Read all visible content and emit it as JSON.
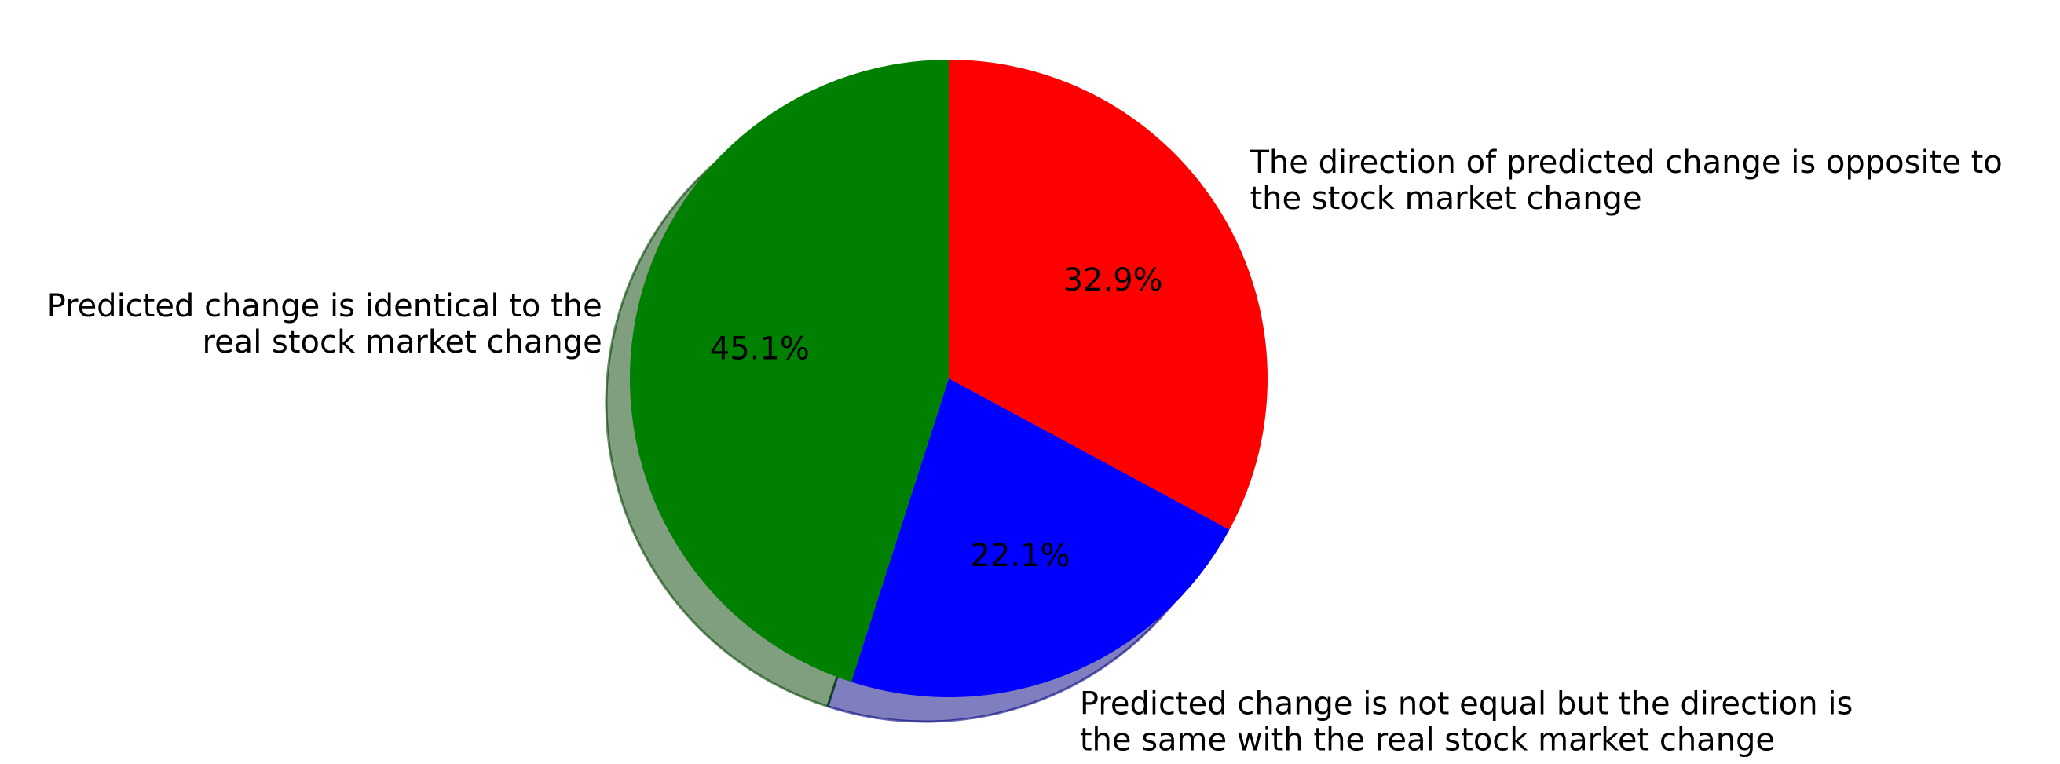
{
  "chart_data": {
    "type": "pie",
    "title": "",
    "shadow": true,
    "start_angle_deg": 90,
    "direction": "clockwise",
    "slices": [
      {
        "key": "opposite",
        "value": 32.9,
        "pct_label": "32.9%",
        "color": "#ff0000",
        "label_lines": [
          "The direction of predicted change is opposite to",
          "the stock market change"
        ]
      },
      {
        "key": "same-direction",
        "value": 22.1,
        "pct_label": "22.1%",
        "color": "#0000ff",
        "label_lines": [
          "Predicted change is not equal but the direction is",
          "the same with the real stock market change"
        ]
      },
      {
        "key": "identical",
        "value": 45.1,
        "pct_label": "45.1%",
        "color": "#008000",
        "label_lines": [
          "Predicted change is identical to the",
          "real stock market change"
        ]
      }
    ]
  }
}
